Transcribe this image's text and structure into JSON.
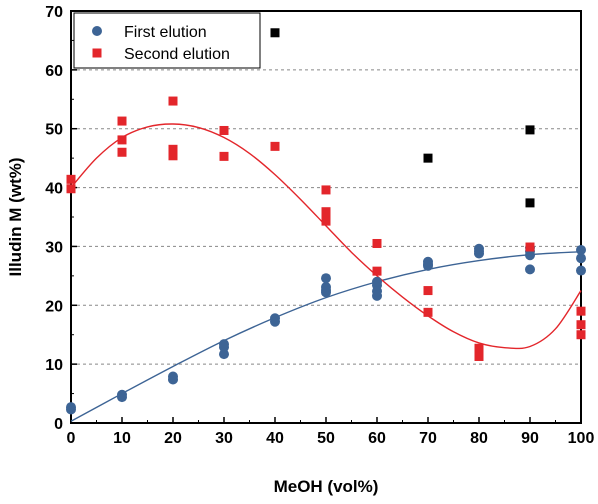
{
  "chart_data": {
    "type": "scatter",
    "xlabel": "MeOH (vol%)",
    "ylabel": "Illudin M (wt%)",
    "xlim": [
      0,
      100
    ],
    "ylim": [
      0,
      70
    ],
    "xticks": [
      "0",
      "10",
      "20",
      "30",
      "40",
      "50",
      "60",
      "70",
      "80",
      "90",
      "100"
    ],
    "yticks": [
      "0",
      "10",
      "20",
      "30",
      "40",
      "50",
      "60",
      "70"
    ],
    "grid": "horizontal dashed",
    "legend_position": "top-left",
    "series": [
      {
        "name": "First elution",
        "color": "#3d6495",
        "marker": "circle",
        "points": [
          [
            0,
            2.3
          ],
          [
            0,
            2.7
          ],
          [
            10,
            4.4
          ],
          [
            10,
            4.8
          ],
          [
            20,
            7.4
          ],
          [
            20,
            7.9
          ],
          [
            30,
            11.7
          ],
          [
            30,
            12.9
          ],
          [
            30,
            13.4
          ],
          [
            40,
            17.2
          ],
          [
            40,
            17.8
          ],
          [
            50,
            22.2
          ],
          [
            50,
            22.6
          ],
          [
            50,
            23.1
          ],
          [
            50,
            24.6
          ],
          [
            60,
            21.6
          ],
          [
            60,
            22.4
          ],
          [
            60,
            23.4
          ],
          [
            60,
            24.0
          ],
          [
            70,
            26.7
          ],
          [
            70,
            27.0
          ],
          [
            70,
            27.4
          ],
          [
            80,
            28.8
          ],
          [
            80,
            29.2
          ],
          [
            80,
            29.6
          ],
          [
            90,
            26.1
          ],
          [
            90,
            28.5
          ],
          [
            90,
            29.2
          ],
          [
            90,
            29.8
          ],
          [
            100,
            25.9
          ],
          [
            100,
            28.0
          ],
          [
            100,
            29.4
          ]
        ],
        "fit": [
          [
            0,
            0.3
          ],
          [
            10,
            5.0
          ],
          [
            20,
            9.6
          ],
          [
            30,
            14.0
          ],
          [
            40,
            17.9
          ],
          [
            50,
            21.3
          ],
          [
            60,
            24.0
          ],
          [
            70,
            26.1
          ],
          [
            80,
            27.6
          ],
          [
            90,
            28.6
          ],
          [
            100,
            29.1
          ]
        ]
      },
      {
        "name": "Second elution",
        "color": "#e3262b",
        "marker": "square",
        "points": [
          [
            0,
            39.8
          ],
          [
            0,
            41.4
          ],
          [
            10,
            46.0
          ],
          [
            10,
            48.1
          ],
          [
            10,
            51.3
          ],
          [
            20,
            45.4
          ],
          [
            20,
            46.5
          ],
          [
            20,
            54.7
          ],
          [
            30,
            45.3
          ],
          [
            30,
            49.7
          ],
          [
            40,
            47.0
          ],
          [
            50,
            34.3
          ],
          [
            50,
            35.0
          ],
          [
            50,
            35.9
          ],
          [
            50,
            39.6
          ],
          [
            60,
            25.8
          ],
          [
            60,
            30.5
          ],
          [
            70,
            18.8
          ],
          [
            70,
            22.5
          ],
          [
            80,
            11.3
          ],
          [
            80,
            12.0
          ],
          [
            80,
            12.7
          ],
          [
            90,
            29.9
          ],
          [
            100,
            15.0
          ],
          [
            100,
            16.7
          ],
          [
            100,
            19.0
          ]
        ],
        "fit": [
          [
            0,
            40.0
          ],
          [
            5,
            45.0
          ],
          [
            10,
            48.5
          ],
          [
            15,
            50.3
          ],
          [
            20,
            50.8
          ],
          [
            25,
            50.2
          ],
          [
            30,
            48.5
          ],
          [
            35,
            45.8
          ],
          [
            40,
            42.2
          ],
          [
            45,
            38.0
          ],
          [
            50,
            33.5
          ],
          [
            55,
            29.0
          ],
          [
            60,
            25.0
          ],
          [
            65,
            21.4
          ],
          [
            70,
            18.2
          ],
          [
            75,
            15.5
          ],
          [
            80,
            13.6
          ],
          [
            85,
            12.8
          ],
          [
            90,
            13.0
          ],
          [
            95,
            16.0
          ],
          [
            100,
            22.5
          ]
        ]
      },
      {
        "name": "",
        "color": "#000000",
        "marker": "square",
        "points": [
          [
            40,
            66.3
          ],
          [
            70,
            45.0
          ],
          [
            90,
            49.8
          ],
          [
            90,
            37.4
          ]
        ]
      }
    ]
  }
}
